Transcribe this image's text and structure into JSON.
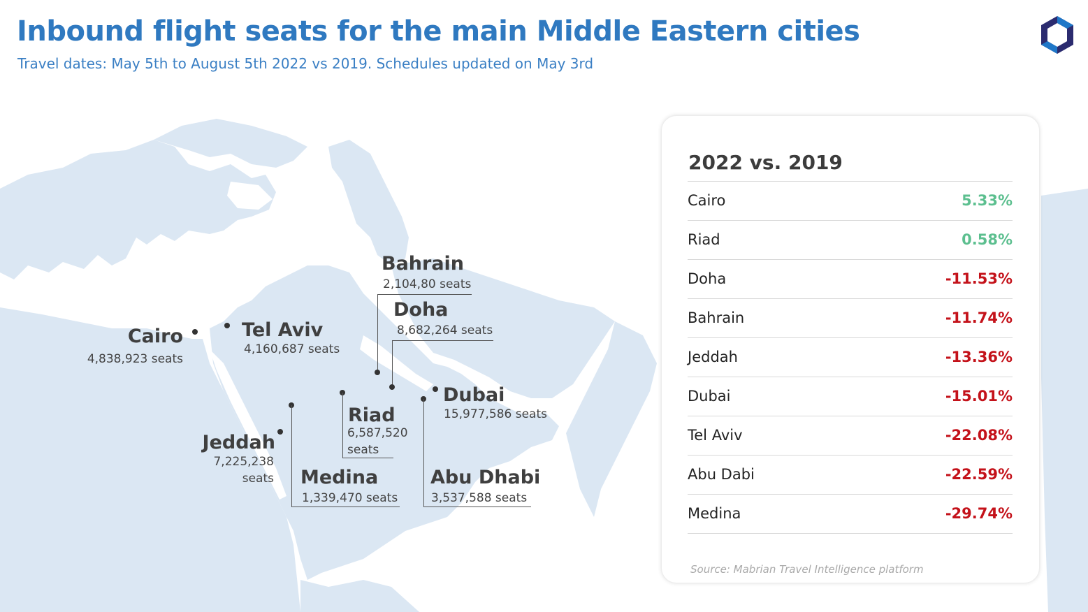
{
  "header": {
    "title": "Inbound flight seats for the main Middle Eastern cities",
    "subtitle": "Travel dates: May 5th to August 5th 2022 vs 2019. Schedules updated on May 3rd"
  },
  "colors": {
    "title": "#2f79c0",
    "land": "#dbe7f3",
    "positive": "#5cbf8f",
    "negative": "#c4121a",
    "logo_dark": "#2b2b6f",
    "logo_light": "#1f77c8"
  },
  "icons": {
    "logo": "hexagon-logo-icon"
  },
  "map": {
    "cities": [
      {
        "name": "Cairo",
        "seats": "4,838,923 seats"
      },
      {
        "name": "Tel Aviv",
        "seats": "4,160,687 seats"
      },
      {
        "name": "Bahrain",
        "seats": "2,104,80 seats"
      },
      {
        "name": "Doha",
        "seats": "8,682,264 seats"
      },
      {
        "name": "Dubai",
        "seats": "15,977,586 seats"
      },
      {
        "name": "Riad",
        "seats_line1": "6,587,520",
        "seats_line2": "seats"
      },
      {
        "name": "Jeddah",
        "seats_line1": "7,225,238",
        "seats_line2": "seats"
      },
      {
        "name": "Medina",
        "seats": "1,339,470 seats"
      },
      {
        "name": "Abu Dhabi",
        "seats": "3,537,588 seats"
      }
    ]
  },
  "panel": {
    "title": "2022 vs. 2019",
    "rows": [
      {
        "city": "Cairo",
        "change": "5.33%",
        "positive": true
      },
      {
        "city": "Riad",
        "change": "0.58%",
        "positive": true
      },
      {
        "city": "Doha",
        "change": "-11.53%",
        "positive": false
      },
      {
        "city": "Bahrain",
        "change": "-11.74%",
        "positive": false
      },
      {
        "city": "Jeddah",
        "change": "-13.36%",
        "positive": false
      },
      {
        "city": "Dubai",
        "change": "-15.01%",
        "positive": false
      },
      {
        "city": "Tel Aviv",
        "change": "-22.08%",
        "positive": false
      },
      {
        "city": "Abu Dabi",
        "change": "-22.59%",
        "positive": false
      },
      {
        "city": "Medina",
        "change": "-29.74%",
        "positive": false
      }
    ],
    "source": "Source: Mabrian Travel Intelligence platform"
  }
}
